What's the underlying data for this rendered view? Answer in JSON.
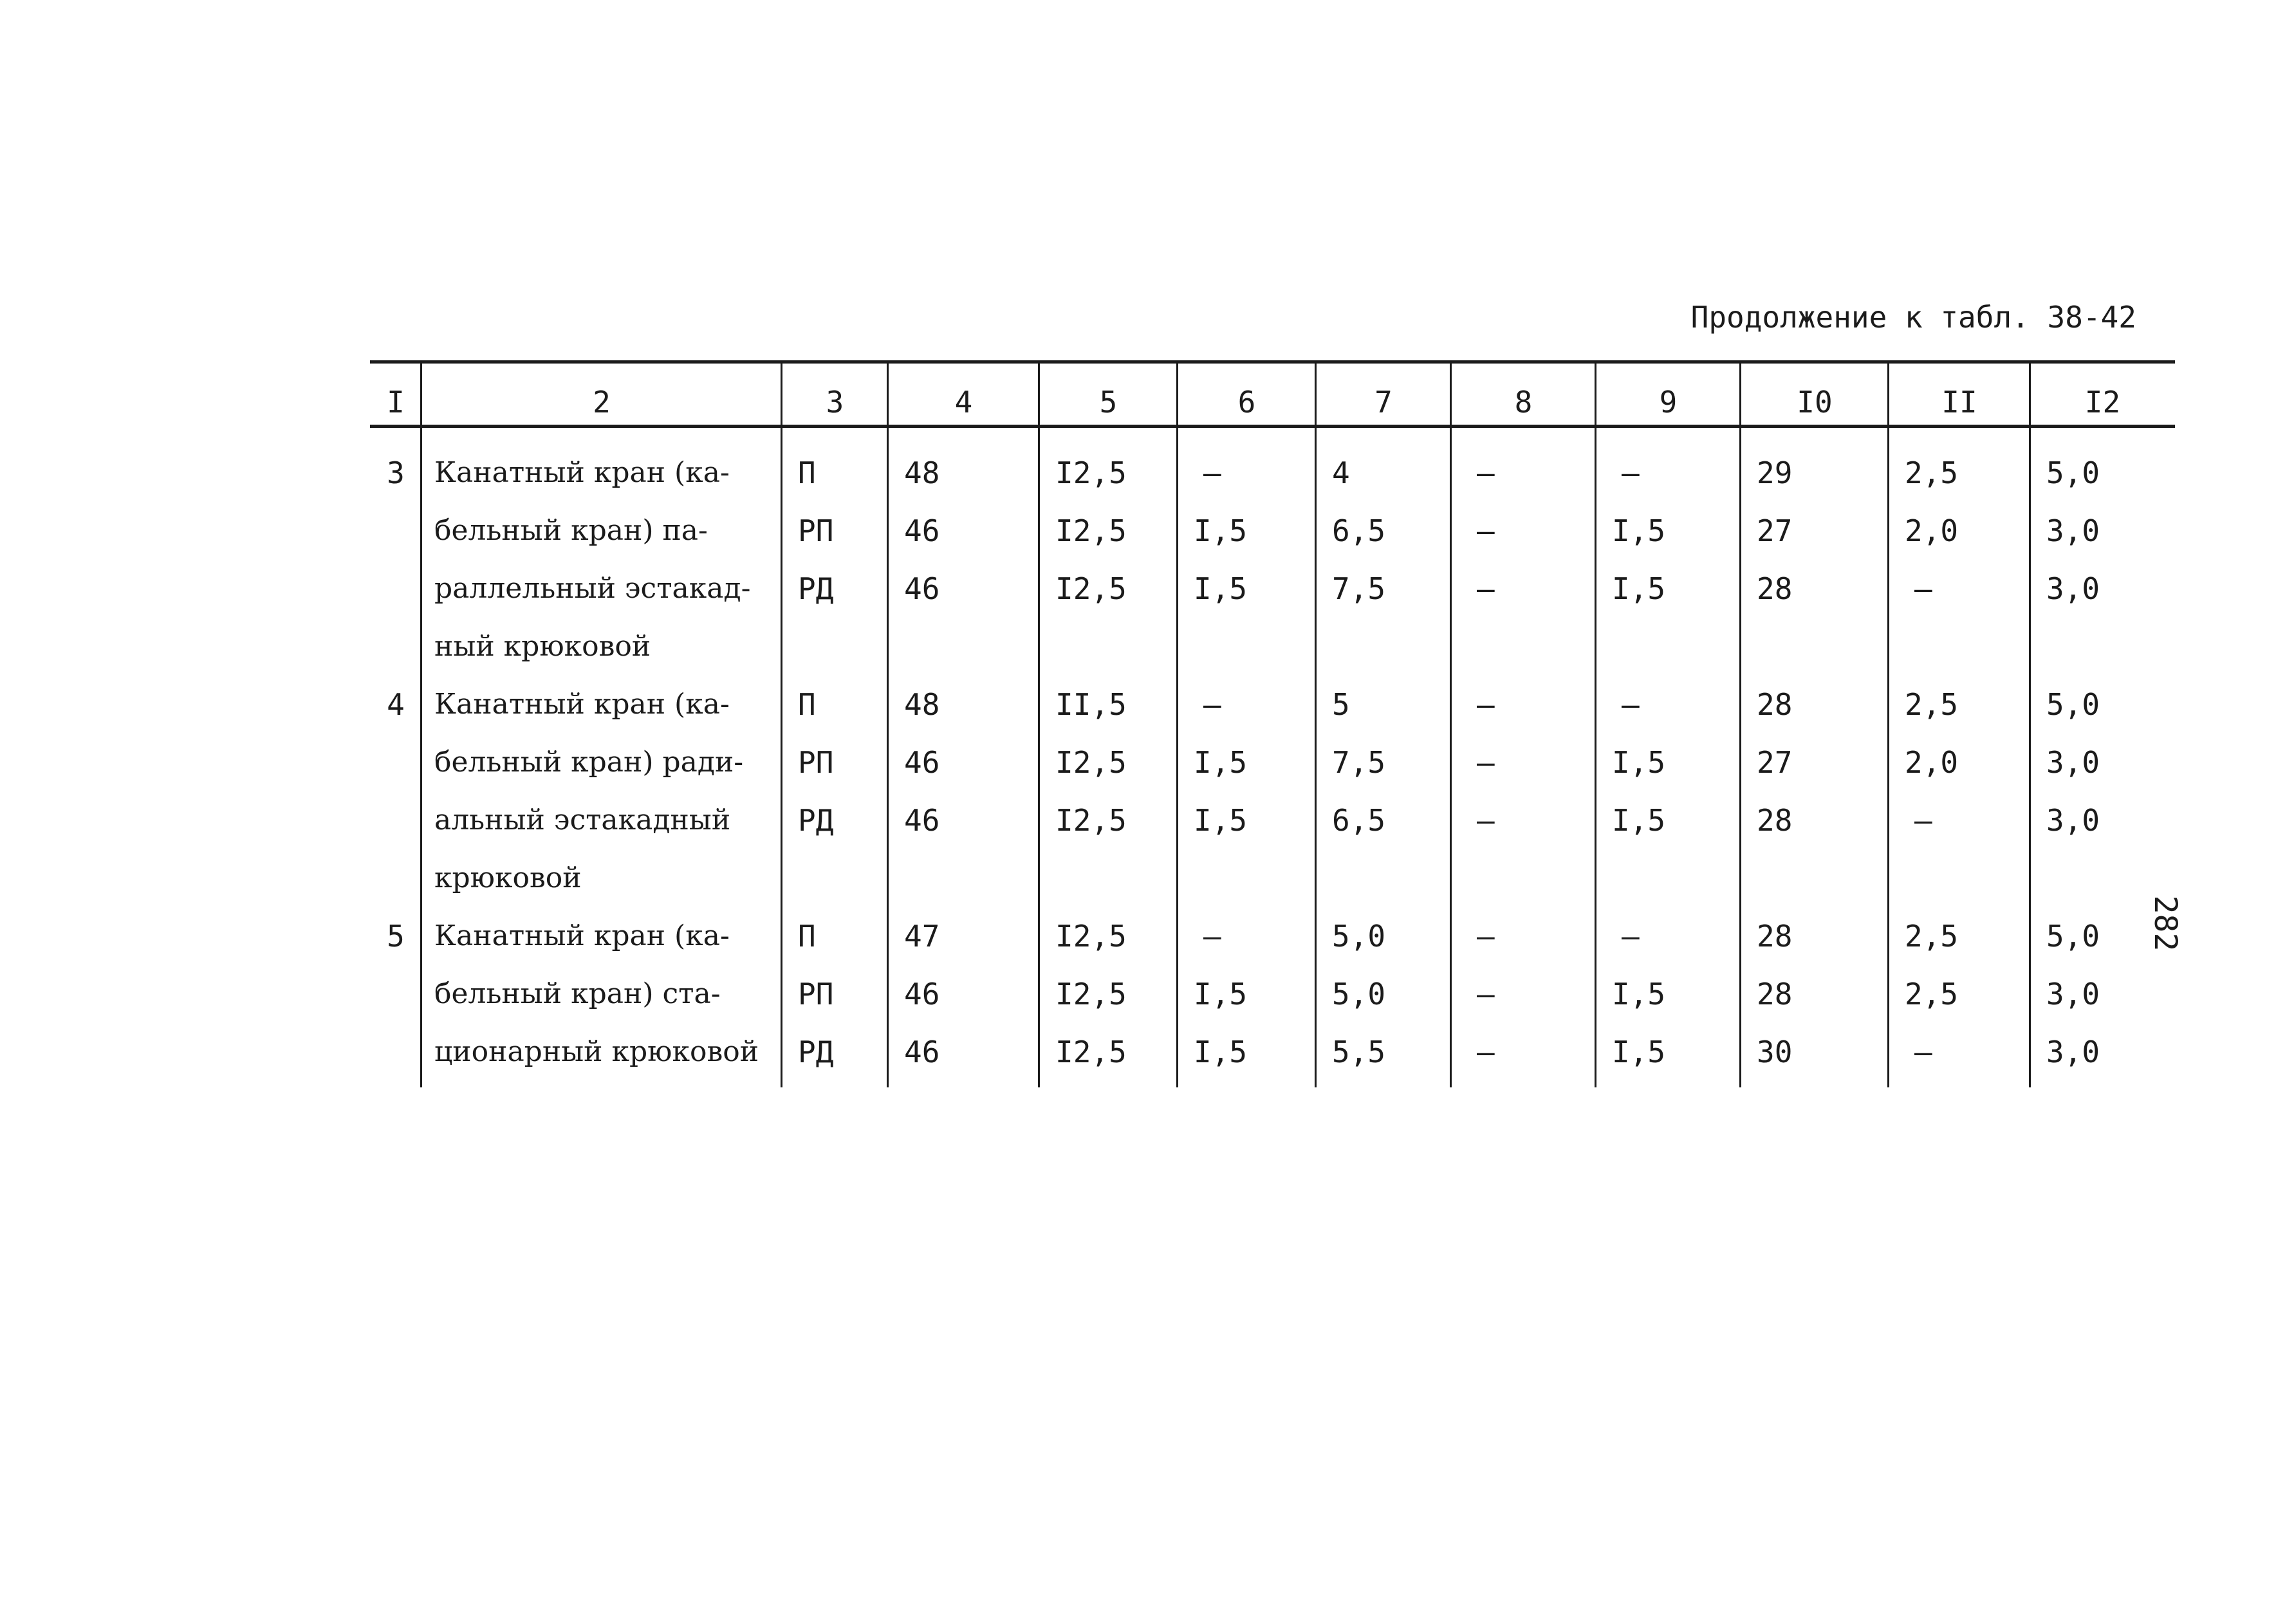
{
  "caption": "Продолжение к табл. 38-42",
  "page_number": "282",
  "table": {
    "header": [
      "I",
      "2",
      "3",
      "4",
      "5",
      "6",
      "7",
      "8",
      "9",
      "I0",
      "II",
      "I2"
    ],
    "groups": [
      {
        "num": "3",
        "name_lines": [
          "Канатный кран (ка-",
          "бельный кран) па-",
          "раллельный эстакад-",
          "ный крюковой"
        ],
        "rows": [
          [
            "П",
            "48",
            "I2,5",
            "–",
            "4",
            "–",
            "–",
            "29",
            "2,5",
            "5,0"
          ],
          [
            "РП",
            "46",
            "I2,5",
            "I,5",
            "6,5",
            "–",
            "I,5",
            "27",
            "2,0",
            "3,0"
          ],
          [
            "РД",
            "46",
            "I2,5",
            "I,5",
            "7,5",
            "–",
            "I,5",
            "28",
            "–",
            "3,0"
          ]
        ]
      },
      {
        "num": "4",
        "name_lines": [
          "Канатный кран (ка-",
          "бельный кран) ради-",
          "альный эстакадный",
          "крюковой"
        ],
        "rows": [
          [
            "П",
            "48",
            "II,5",
            "–",
            "5",
            "–",
            "–",
            "28",
            "2,5",
            "5,0"
          ],
          [
            "РП",
            "46",
            "I2,5",
            "I,5",
            "7,5",
            "–",
            "I,5",
            "27",
            "2,0",
            "3,0"
          ],
          [
            "РД",
            "46",
            "I2,5",
            "I,5",
            "6,5",
            "–",
            "I,5",
            "28",
            "–",
            "3,0"
          ]
        ]
      },
      {
        "num": "5",
        "name_lines": [
          "Канатный кран (ка-",
          "бельный кран) ста-",
          "ционарный крюковой"
        ],
        "rows": [
          [
            "П",
            "47",
            "I2,5",
            "–",
            "5,0",
            "–",
            "–",
            "28",
            "2,5",
            "5,0"
          ],
          [
            "РП",
            "46",
            "I2,5",
            "I,5",
            "5,0",
            "–",
            "I,5",
            "28",
            "2,5",
            "3,0"
          ],
          [
            "РД",
            "46",
            "I2,5",
            "I,5",
            "5,5",
            "–",
            "I,5",
            "30",
            "–",
            "3,0"
          ]
        ]
      }
    ]
  }
}
